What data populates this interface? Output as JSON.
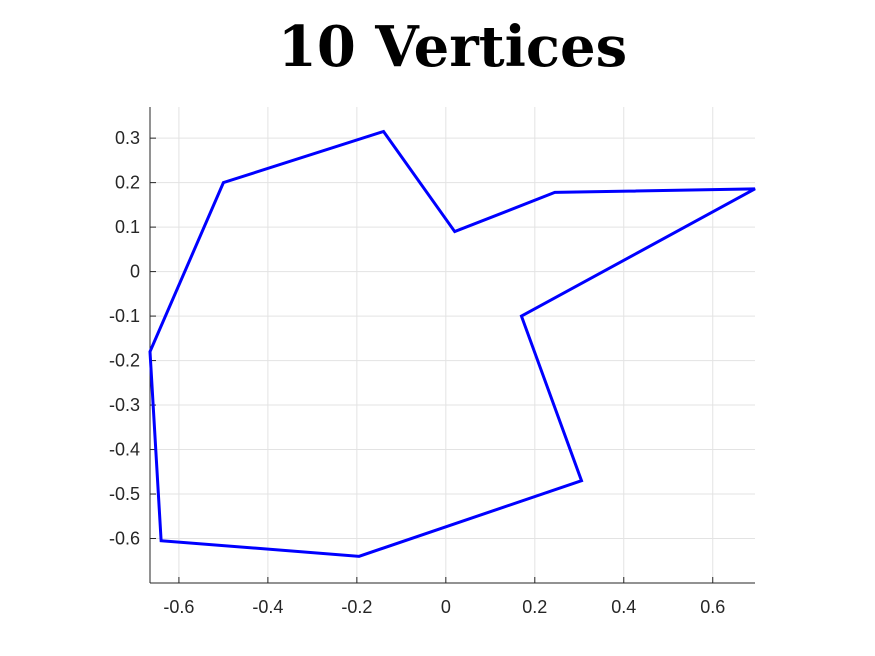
{
  "chart_data": {
    "type": "line",
    "title": "10 Vertices",
    "xlabel": "",
    "ylabel": "",
    "xlim": [
      -0.665,
      0.695
    ],
    "ylim": [
      -0.7,
      0.37
    ],
    "grid": true,
    "line_color": "#0000ff",
    "xticks": [
      -0.6,
      -0.4,
      -0.2,
      0,
      0.2,
      0.4,
      0.6
    ],
    "xtick_labels": [
      "-0.6",
      "-0.4",
      "-0.2",
      "0",
      "0.2",
      "0.4",
      "0.6"
    ],
    "yticks": [
      0.3,
      0.2,
      0.1,
      0,
      -0.1,
      -0.2,
      -0.3,
      -0.4,
      -0.5,
      -0.6
    ],
    "ytick_labels": [
      "0.3",
      "0.2",
      "0.1",
      "0",
      "-0.1",
      "-0.2",
      "-0.3",
      "-0.4",
      "-0.5",
      "-0.6"
    ],
    "series": [
      {
        "closed": true,
        "x": [
          -0.14,
          0.02,
          0.245,
          0.695,
          0.17,
          0.305,
          -0.195,
          -0.64,
          -0.665,
          -0.5
        ],
        "y": [
          0.315,
          0.09,
          0.178,
          0.186,
          -0.1,
          -0.47,
          -0.64,
          -0.605,
          -0.18,
          0.2
        ]
      }
    ]
  }
}
